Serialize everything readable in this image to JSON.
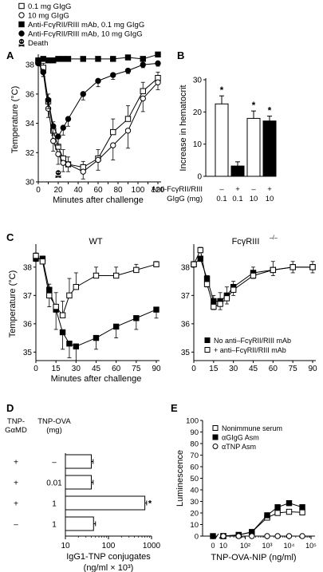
{
  "figure_legend": [
    {
      "marker": "open-square",
      "label": "0.1 mg GIgG"
    },
    {
      "marker": "open-circle",
      "label": "10 mg GIgG"
    },
    {
      "marker": "filled-square",
      "label": "Anti-FcγRII/RIII mAb, 0.1 mg GIgG"
    },
    {
      "marker": "filled-circle",
      "label": "Anti-FcγRII/RIII mAb, 10 mg GIgG"
    },
    {
      "marker": "skull",
      "label": "Death"
    }
  ],
  "chart_data": [
    {
      "panel": "A",
      "type": "line",
      "xlabel": "Minutes after challenge",
      "ylabel": "Temperature (°C)",
      "xlim": [
        0,
        120
      ],
      "ylim": [
        30,
        38.5
      ],
      "xticks": [
        0,
        10,
        20,
        30,
        40,
        50,
        60,
        70,
        80,
        90,
        100,
        110,
        120
      ],
      "yticks": [
        30,
        32,
        34,
        36,
        38
      ],
      "death_marker_x": 20,
      "series": [
        {
          "name": "0.1 mg GIgG",
          "marker": "open-square",
          "x": [
            0,
            5,
            10,
            15,
            20,
            25,
            30,
            45,
            60,
            75,
            90,
            105,
            120
          ],
          "y": [
            38.2,
            37.8,
            35.5,
            33.5,
            32.4,
            31.6,
            31.2,
            31.0,
            31.6,
            33.4,
            34.3,
            36.2,
            37.1
          ],
          "err": [
            0.1,
            0.3,
            0.5,
            0.6,
            0.6,
            0.6,
            0.5,
            0.4,
            0.6,
            0.9,
            0.9,
            0.6,
            0.4
          ]
        },
        {
          "name": "10 mg GIgG",
          "marker": "open-circle",
          "x": [
            0,
            5,
            10,
            15,
            20,
            25,
            30,
            45,
            60,
            75,
            90,
            105,
            120
          ],
          "y": [
            38.1,
            37.5,
            35.0,
            32.8,
            31.9,
            31.3,
            31.2,
            30.7,
            31.5,
            32.5,
            33.5,
            35.7,
            36.8
          ],
          "err": [
            0.1,
            0.3,
            0.6,
            0.7,
            0.7,
            0.6,
            0.5,
            0.5,
            0.7,
            1.0,
            1.2,
            0.9,
            0.5
          ]
        },
        {
          "name": "Anti-FcγRII/RIII mAb, 0.1 mg GIgG",
          "marker": "filled-square",
          "x": [
            0,
            5,
            10,
            15,
            20,
            25,
            30,
            45,
            60,
            75,
            90,
            105,
            120
          ],
          "y": [
            38.3,
            38.4,
            38.3,
            38.3,
            38.4,
            38.4,
            38.4,
            38.4,
            38.4,
            38.4,
            38.5,
            38.4,
            38.7
          ],
          "err": [
            0,
            0,
            0,
            0,
            0,
            0,
            0,
            0,
            0,
            0,
            0,
            0,
            0.1
          ]
        },
        {
          "name": "Anti-FcγRII/RIII mAb, 10 mg GIgG",
          "marker": "filled-circle",
          "x": [
            0,
            5,
            10,
            15,
            20,
            25,
            30,
            45,
            60,
            75,
            90,
            105,
            120
          ],
          "y": [
            38.1,
            37.5,
            35.6,
            33.8,
            33.1,
            33.7,
            34.3,
            36.0,
            36.9,
            37.3,
            37.6,
            38.0,
            38.1
          ],
          "err": [
            0.1,
            0.3,
            0.6,
            0.6,
            0.6,
            0.5,
            0.5,
            0.4,
            0.4,
            0.3,
            0.2,
            0.2,
            0.2
          ]
        }
      ]
    },
    {
      "panel": "B",
      "type": "bar",
      "ylabel": "Increase in hematocrit",
      "ylim": [
        0,
        30
      ],
      "yticks": [
        0,
        10,
        20,
        30
      ],
      "row_labels": [
        "Anti-FcγRII/RIII",
        "GIgG (mg)"
      ],
      "categories": [
        {
          "antibody": "–",
          "gigg": "0.1"
        },
        {
          "antibody": "+",
          "gigg": "0.1"
        },
        {
          "antibody": "–",
          "gigg": "10"
        },
        {
          "antibody": "+",
          "gigg": "10"
        }
      ],
      "values": [
        22.5,
        3.2,
        18.0,
        17.2
      ],
      "errors": [
        2.5,
        1.3,
        2.3,
        1.5
      ],
      "fills": [
        "#ffffff",
        "#000000",
        "#ffffff",
        "#000000"
      ],
      "significance": [
        "*",
        "",
        "*",
        "*"
      ]
    },
    {
      "panel": "C",
      "type": "line",
      "title": "WT",
      "xlabel": "Minutes after challenge",
      "ylabel": "Temperature (°C)",
      "xlim": [
        0,
        90
      ],
      "ylim": [
        34.7,
        38.7
      ],
      "xticks": [
        0,
        15,
        30,
        45,
        60,
        75,
        90
      ],
      "yticks": [
        35,
        36,
        37,
        38
      ],
      "series": [
        {
          "name": "No anti–FcγRII/RIII mAb",
          "marker": "filled-square",
          "x": [
            0,
            5,
            10,
            15,
            20,
            25,
            30,
            45,
            60,
            75,
            90
          ],
          "y": [
            38.3,
            38.3,
            37.2,
            36.5,
            35.7,
            35.3,
            35.2,
            35.5,
            35.9,
            36.2,
            36.5
          ],
          "err": [
            0.1,
            0.1,
            0.6,
            0.7,
            0.6,
            0.5,
            0.5,
            0.4,
            0.4,
            0.4,
            0.3
          ]
        },
        {
          "name": "+ anti–FcγRII/RIII mAb",
          "marker": "open-square",
          "x": [
            0,
            5,
            10,
            15,
            20,
            25,
            30,
            45,
            60,
            75,
            90
          ],
          "y": [
            38.4,
            38.2,
            37.0,
            36.6,
            36.3,
            37.0,
            37.3,
            37.7,
            37.7,
            37.9,
            38.1
          ],
          "err": [
            0.1,
            0.1,
            0.4,
            0.5,
            0.5,
            0.6,
            0.5,
            0.3,
            0.3,
            0.2,
            0.1
          ]
        }
      ]
    },
    {
      "panel": "C",
      "type": "line",
      "title": "FcγRIII",
      "title_superscript": "–/–",
      "xlabel": "",
      "ylabel": "",
      "xlim": [
        0,
        90
      ],
      "ylim": [
        34.7,
        38.7
      ],
      "xticks": [
        0,
        15,
        30,
        45,
        60,
        75,
        90
      ],
      "yticks": [
        35,
        36,
        37,
        38
      ],
      "legend": [
        {
          "marker": "filled-square",
          "label": "No anti–FcγRII/RIII mAb"
        },
        {
          "marker": "open-square",
          "label": "+ anti–FcγRII/RIII mAb"
        }
      ],
      "series": [
        {
          "name": "No anti–FcγRII/RIII mAb",
          "marker": "filled-square",
          "x": [
            0,
            5,
            10,
            15,
            20,
            25,
            30,
            45,
            60,
            75,
            90
          ],
          "y": [
            38.1,
            38.3,
            37.6,
            36.8,
            36.8,
            37.0,
            37.3,
            37.8,
            37.9,
            38.0,
            38.0
          ],
          "err": [
            0.1,
            0.1,
            0.3,
            0.3,
            0.3,
            0.3,
            0.3,
            0.2,
            0.2,
            0.2,
            0.2
          ]
        },
        {
          "name": "+ anti–FcγRII/RIII mAb",
          "marker": "open-square",
          "x": [
            0,
            5,
            10,
            15,
            20,
            25,
            30,
            45,
            60,
            75,
            90
          ],
          "y": [
            38.1,
            38.6,
            37.4,
            36.6,
            36.7,
            36.9,
            37.2,
            37.7,
            37.9,
            38.0,
            38.0
          ],
          "err": [
            0.1,
            0.1,
            0.3,
            0.4,
            0.4,
            0.4,
            0.3,
            0.3,
            0.3,
            0.2,
            0.2
          ]
        }
      ]
    },
    {
      "panel": "D",
      "type": "bar",
      "orientation": "horizontal",
      "scale": "log",
      "xlabel": "IgG1-TNP conjugates",
      "xlabel_units": "(ng/ml × 10³)",
      "xlim": [
        10,
        1000
      ],
      "xticks": [
        10,
        100,
        1000
      ],
      "column_labels": [
        "TNP-\nGαMD",
        "TNP-OVA\n(mg)"
      ],
      "rows": [
        {
          "tnp_gamd": "+",
          "tnp_ova": "–",
          "value": 40,
          "error": 4,
          "significance": ""
        },
        {
          "tnp_gamd": "+",
          "tnp_ova": "0.01",
          "value": 40,
          "error": 4,
          "significance": ""
        },
        {
          "tnp_gamd": "+",
          "tnp_ova": "1",
          "value": 700,
          "error": 70,
          "significance": "*"
        },
        {
          "tnp_gamd": "–",
          "tnp_ova": "1",
          "value": 45,
          "error": 5,
          "significance": ""
        }
      ]
    },
    {
      "panel": "E",
      "type": "line",
      "scale": "log-x",
      "xlabel": "TNP-OVA-NIP (ng/ml)",
      "ylabel": "Luminescence",
      "ylim": [
        0,
        100
      ],
      "yticks": [
        0,
        10,
        20,
        30,
        40,
        50,
        60,
        70,
        80,
        90,
        100
      ],
      "xtick_labels": [
        "0",
        "10",
        "10²",
        "10³",
        "10⁴",
        "10⁵"
      ],
      "legend": [
        {
          "marker": "open-square",
          "label": "Nonimmune serum"
        },
        {
          "marker": "filled-square",
          "label": "αGIgG Asm"
        },
        {
          "marker": "open-circle",
          "label": "αTNP Asm"
        }
      ],
      "zero_x": {
        "x": 0,
        "y": 0
      },
      "series": [
        {
          "name": "Nonimmune serum",
          "marker": "open-square",
          "x": [
            10,
            50,
            200,
            1000,
            3000,
            10000,
            40000
          ],
          "y": [
            0,
            1,
            3.5,
            16,
            20,
            21,
            20.5
          ]
        },
        {
          "name": "αGIgG Asm",
          "marker": "filled-square",
          "x": [
            10,
            50,
            200,
            1000,
            3000,
            10000,
            40000
          ],
          "y": [
            0,
            1,
            3.5,
            18,
            25,
            28.5,
            25
          ]
        },
        {
          "name": "αTNP Asm",
          "marker": "open-circle",
          "x": [
            10,
            50,
            200,
            1000,
            3000,
            10000,
            40000
          ],
          "y": [
            0,
            0,
            0,
            0,
            0,
            0,
            0
          ]
        }
      ]
    }
  ],
  "panel_letters": [
    "A",
    "B",
    "C",
    "D",
    "E"
  ]
}
